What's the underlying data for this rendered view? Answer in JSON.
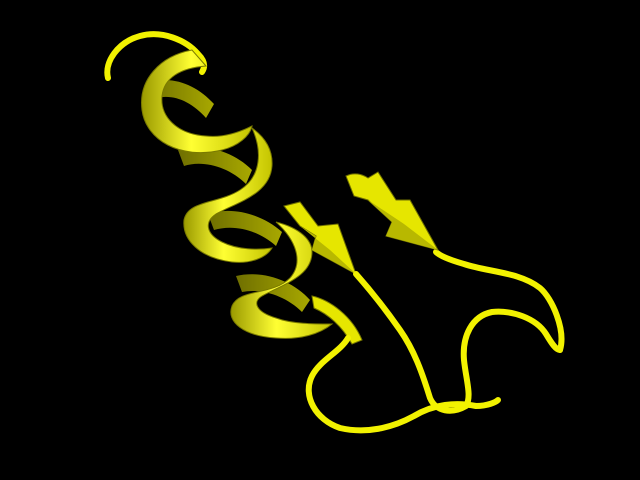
{
  "scene": {
    "background_color": "#000000",
    "structure_color": "#ffff00",
    "shade_color": "#c8c800",
    "dark_shade_color": "#8a8a00"
  }
}
